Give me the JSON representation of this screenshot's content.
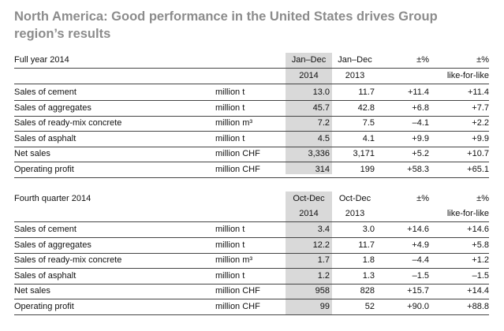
{
  "title_line1": "North America: Good performance in the United States drives Group",
  "title_line2": "region’s results",
  "full_year": {
    "section_label": "Full year 2014",
    "col1_head1": "Jan–Dec",
    "col1_head2": "2014",
    "col2_head1": "Jan–Dec",
    "col2_head2": "2013",
    "col3_head1": "±%",
    "col4_head1": "±%",
    "col4_head2": "like-for-like",
    "rows": [
      {
        "label": "Sales of cement",
        "unit": "million t",
        "v2014": "13.0",
        "v2013": "11.7",
        "chg": "+11.4",
        "lfl": "+11.4"
      },
      {
        "label": "Sales of aggregates",
        "unit": "million t",
        "v2014": "45.7",
        "v2013": "42.8",
        "chg": "+6.8",
        "lfl": "+7.7"
      },
      {
        "label": "Sales of ready-mix concrete",
        "unit": "million m³",
        "v2014": "7.2",
        "v2013": "7.5",
        "chg": "–4.1",
        "lfl": "+2.2"
      },
      {
        "label": "Sales of asphalt",
        "unit": "million t",
        "v2014": "4.5",
        "v2013": "4.1",
        "chg": "+9.9",
        "lfl": "+9.9"
      },
      {
        "label": "Net sales",
        "unit": "million CHF",
        "v2014": "3,336",
        "v2013": "3,171",
        "chg": "+5.2",
        "lfl": "+10.7"
      },
      {
        "label": "Operating profit",
        "unit": "million CHF",
        "v2014": "314",
        "v2013": "199",
        "chg": "+58.3",
        "lfl": "+65.1"
      }
    ]
  },
  "fourth_quarter": {
    "section_label": "Fourth quarter 2014",
    "col1_head1": "Oct-Dec",
    "col1_head2": "2014",
    "col2_head1": "Oct-Dec",
    "col2_head2": "2013",
    "col3_head1": "±%",
    "col4_head1": "±%",
    "col4_head2": "like-for-like",
    "rows": [
      {
        "label": "Sales of cement",
        "unit": "million t",
        "v2014": "3.4",
        "v2013": "3.0",
        "chg": "+14.6",
        "lfl": "+14.6"
      },
      {
        "label": "Sales of aggregates",
        "unit": "million t",
        "v2014": "12.2",
        "v2013": "11.7",
        "chg": "+4.9",
        "lfl": "+5.8"
      },
      {
        "label": "Sales of ready-mix concrete",
        "unit": "million m³",
        "v2014": "1.7",
        "v2013": "1.8",
        "chg": "–4.4",
        "lfl": "+1.2"
      },
      {
        "label": "Sales of asphalt",
        "unit": "million t",
        "v2014": "1.2",
        "v2013": "1.3",
        "chg": "–1.5",
        "lfl": "–1.5"
      },
      {
        "label": "Net sales",
        "unit": "million CHF",
        "v2014": "958",
        "v2013": "828",
        "chg": "+15.7",
        "lfl": "+14.4"
      },
      {
        "label": "Operating profit",
        "unit": "million CHF",
        "v2014": "99",
        "v2013": "52",
        "chg": "+90.0",
        "lfl": "+88.8"
      }
    ]
  }
}
